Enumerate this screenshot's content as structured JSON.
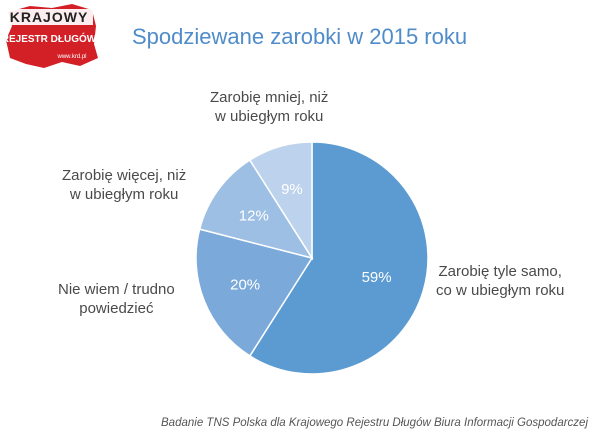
{
  "logo": {
    "line1": "KRAJOWY",
    "line2": "REJESTR DŁUGÓW",
    "url": "www.krd.pl",
    "colors": {
      "map": "#d32027",
      "text": "#ffffff",
      "line1": "#222222"
    }
  },
  "chart_data": {
    "type": "pie",
    "title": "Spodziewane zarobki w 2015 roku",
    "slices": [
      {
        "label_line1": "Zarobię tyle samo,",
        "label_line2": "co w ubiegłym roku",
        "value": 59,
        "display": "59%",
        "color": "#5b9bd1"
      },
      {
        "label_line1": "Nie wiem / trudno",
        "label_line2": "powiedzieć",
        "value": 20,
        "display": "20%",
        "color": "#7aa9da"
      },
      {
        "label_line1": "Zarobię więcej, niż",
        "label_line2": "w ubiegłym roku",
        "value": 12,
        "display": "12%",
        "color": "#9dbfe3"
      },
      {
        "label_line1": "Zarobię mniej, niż",
        "label_line2": "w ubiegłym roku",
        "value": 9,
        "display": "9%",
        "color": "#bdd3ed"
      }
    ],
    "label_color": "#ffffff",
    "legend": "none"
  },
  "source": "Badanie TNS Polska dla Krajowego Rejestru Długów Biura Informacji Gospodarczej"
}
